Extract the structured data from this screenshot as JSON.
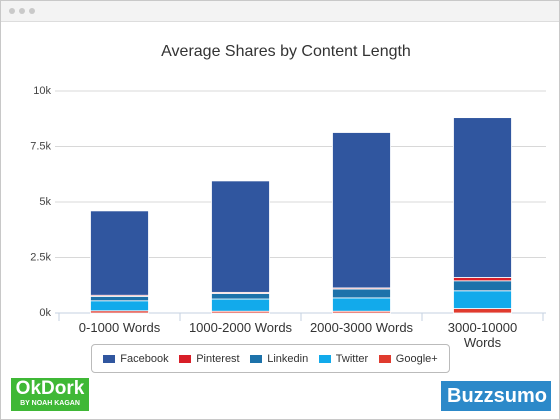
{
  "chart_data": {
    "type": "stacked_bar",
    "title": "Average Shares by Content Length",
    "categories": [
      "0-1000 Words",
      "1000-2000 Words",
      "2000-3000 Words",
      "3000-10000 Words"
    ],
    "series": [
      {
        "name": "Google+",
        "color": "#e03b2e",
        "values": [
          100,
          80,
          80,
          200
        ]
      },
      {
        "name": "Twitter",
        "color": "#12aaeb",
        "values": [
          450,
          550,
          600,
          800
        ]
      },
      {
        "name": "Linkedin",
        "color": "#1d72aa",
        "values": [
          200,
          250,
          400,
          450
        ]
      },
      {
        "name": "Pinterest",
        "color": "#d81e28",
        "values": [
          50,
          50,
          50,
          150
        ]
      },
      {
        "name": "Facebook",
        "color": "#30569f",
        "values": [
          3800,
          5020,
          7000,
          7200
        ]
      }
    ],
    "legend_order": [
      4,
      3,
      2,
      1,
      0
    ],
    "ylim": [
      0,
      10000
    ],
    "yticks": [
      {
        "value": 0,
        "label": "0k"
      },
      {
        "value": 2500,
        "label": "2.5k"
      },
      {
        "value": 5000,
        "label": "5k"
      },
      {
        "value": 7500,
        "label": "7.5k"
      },
      {
        "value": 10000,
        "label": "10k"
      }
    ],
    "grid": true
  },
  "branding": {
    "left": "OkDork",
    "left_sub": "BY NOAH KAGAN",
    "right": "Buzzsumo"
  }
}
